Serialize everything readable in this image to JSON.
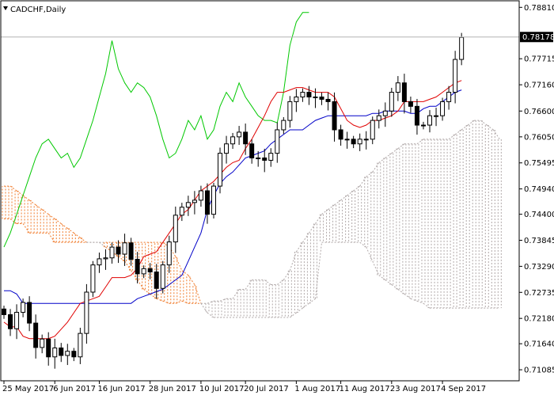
{
  "header": {
    "symbol_timeframe": "CADCHF,Daily",
    "menu_icon": "triangle-down-icon"
  },
  "price_marker": {
    "label": "0.78178",
    "value": 0.78178,
    "bg_color": "#000000",
    "text_color": "#ffffff"
  },
  "colors": {
    "background": "#ffffff",
    "axis": "#000000",
    "bull_candle": "#ffffff",
    "bear_candle": "#000000",
    "tenkan": "#e00000",
    "kijun": "#0000c8",
    "chikou": "#00c800",
    "kumo_bull": "#b0a8a8",
    "kumo_bear": "#f07a2a",
    "current_price_line": "#b4b4b4"
  },
  "chart_data": {
    "type": "candlestick",
    "title": "CADCHF,Daily",
    "indicators": [
      "Ichimoku Kinko Hyo"
    ],
    "ylim": [
      0.7085,
      0.7895
    ],
    "y_ticks": [
      "0.78810",
      "0.77715",
      "0.77160",
      "0.76600",
      "0.76050",
      "0.75495",
      "0.74940",
      "0.74400",
      "0.73845",
      "0.73290",
      "0.72735",
      "0.72180",
      "0.71640",
      "0.71085"
    ],
    "y_tick_values": [
      0.7881,
      0.77715,
      0.7716,
      0.766,
      0.7605,
      0.75495,
      0.7494,
      0.744,
      0.73845,
      0.7329,
      0.72735,
      0.7218,
      0.7164,
      0.71085
    ],
    "x_ticks": [
      "25 May 2017",
      "6 Jun 2017",
      "16 Jun 2017",
      "28 Jun 2017",
      "10 Jul 2017",
      "20 Jul 2017",
      "1 Aug 2017",
      "11 Aug 2017",
      "23 Aug 2017",
      "4 Sep 2017"
    ],
    "x_tick_bars": [
      0,
      8,
      15,
      23,
      31,
      38,
      46,
      53,
      61,
      69
    ],
    "bars_visible": 73,
    "bars_total": 99,
    "current_price": 0.78178,
    "close": [
      0.7226,
      0.7196,
      0.7231,
      0.7252,
      0.7208,
      0.7156,
      0.7174,
      0.7136,
      0.7155,
      0.7139,
      0.7148,
      0.7136,
      0.7186,
      0.7274,
      0.7332,
      0.7345,
      0.7347,
      0.737,
      0.7355,
      0.7379,
      0.7344,
      0.7313,
      0.7324,
      0.7317,
      0.7282,
      0.7332,
      0.7381,
      0.7438,
      0.7455,
      0.7465,
      0.747,
      0.749,
      0.744,
      0.75,
      0.757,
      0.759,
      0.7605,
      0.7615,
      0.759,
      0.756,
      0.756,
      0.7555,
      0.757,
      0.762,
      0.764,
      0.768,
      0.769,
      0.77,
      0.769,
      0.769,
      0.7685,
      0.768,
      0.762,
      0.76,
      0.76,
      0.759,
      0.76,
      0.76,
      0.764,
      0.765,
      0.766,
      0.77,
      0.772,
      0.768,
      0.767,
      0.763,
      0.763,
      0.765,
      0.765,
      0.768,
      0.77,
      0.777,
      0.7817
    ],
    "ohlc_note": "bars 0-72 plotted as open/high/low/close candles",
    "tenkan": [
      0.721,
      0.72,
      0.72,
      0.718,
      0.7175,
      0.7175,
      0.7175,
      0.7175,
      0.718,
      0.7195,
      0.721,
      0.723,
      0.725,
      0.7255,
      0.726,
      0.7265,
      0.7285,
      0.7305,
      0.7305,
      0.7305,
      0.731,
      0.7325,
      0.735,
      0.7355,
      0.736,
      0.738,
      0.74,
      0.742,
      0.744,
      0.745,
      0.747,
      0.749,
      0.75,
      0.751,
      0.7525,
      0.754,
      0.755,
      0.7555,
      0.758,
      0.76,
      0.7625,
      0.765,
      0.768,
      0.77,
      0.77,
      0.7705,
      0.771,
      0.771,
      0.7705,
      0.77,
      0.77,
      0.77,
      0.769,
      0.7665,
      0.764,
      0.763,
      0.7625,
      0.763,
      0.764,
      0.764,
      0.7645,
      0.765,
      0.766,
      0.768,
      0.768,
      0.768,
      0.768,
      0.7685,
      0.769,
      0.77,
      0.771,
      0.772,
      0.7725
    ],
    "kijun": [
      0.7277,
      0.7277,
      0.727,
      0.725,
      0.725,
      0.725,
      0.725,
      0.725,
      0.725,
      0.725,
      0.725,
      0.725,
      0.725,
      0.725,
      0.725,
      0.725,
      0.725,
      0.725,
      0.725,
      0.725,
      0.725,
      0.726,
      0.7265,
      0.727,
      0.7275,
      0.728,
      0.729,
      0.73,
      0.731,
      0.734,
      0.737,
      0.74,
      0.745,
      0.748,
      0.7505,
      0.752,
      0.753,
      0.7545,
      0.756,
      0.7565,
      0.757,
      0.7575,
      0.759,
      0.76,
      0.761,
      0.762,
      0.762,
      0.762,
      0.763,
      0.764,
      0.7645,
      0.765,
      0.765,
      0.765,
      0.765,
      0.765,
      0.765,
      0.765,
      0.7655,
      0.7655,
      0.766,
      0.766,
      0.766,
      0.766,
      0.7655,
      0.7655,
      0.7665,
      0.767,
      0.767,
      0.768,
      0.769,
      0.77,
      0.7705
    ],
    "chikou": [
      0.737,
      0.74,
      0.744,
      0.748,
      0.752,
      0.756,
      0.759,
      0.76,
      0.758,
      0.756,
      0.757,
      0.754,
      0.756,
      0.76,
      0.764,
      0.769,
      0.774,
      0.781,
      0.775,
      0.772,
      0.77,
      0.772,
      0.771,
      0.769,
      0.765,
      0.76,
      0.756,
      0.757,
      0.76,
      0.764,
      0.762,
      0.765,
      0.76,
      0.762,
      0.767,
      0.77,
      0.768,
      0.772,
      0.769,
      0.767,
      0.765,
      0.764,
      0.764,
      0.7635,
      0.77,
      0.78,
      0.785,
      0.787,
      0.787
    ],
    "senkou_a": [
      0.743,
      0.743,
      0.742,
      0.742,
      0.74,
      0.74,
      0.74,
      0.74,
      0.738,
      0.738,
      0.738,
      0.738,
      0.738,
      0.738,
      0.738,
      0.738,
      0.737,
      0.736,
      0.735,
      0.734,
      0.732,
      0.73,
      0.728,
      0.727,
      0.726,
      0.7255,
      0.725,
      0.725,
      0.7255,
      0.725,
      0.725,
      0.725,
      0.725,
      0.7255,
      0.7255,
      0.726,
      0.726,
      0.728,
      0.728,
      0.73,
      0.73,
      0.73,
      0.729,
      0.729,
      0.73,
      0.732,
      0.736,
      0.738,
      0.74,
      0.742,
      0.744,
      0.745,
      0.746,
      0.747,
      0.748,
      0.749,
      0.75,
      0.752,
      0.753,
      0.755,
      0.756,
      0.757,
      0.758,
      0.759,
      0.759,
      0.759,
      0.76,
      0.76,
      0.76,
      0.76,
      0.76,
      0.761,
      0.762,
      0.763,
      0.764,
      0.764,
      0.763,
      0.762,
      0.76
    ],
    "senkou_b": [
      0.75,
      0.75,
      0.749,
      0.748,
      0.747,
      0.746,
      0.745,
      0.744,
      0.743,
      0.742,
      0.741,
      0.74,
      0.739,
      0.738,
      0.738,
      0.738,
      0.738,
      0.738,
      0.738,
      0.738,
      0.738,
      0.738,
      0.738,
      0.738,
      0.738,
      0.738,
      0.737,
      0.735,
      0.732,
      0.731,
      0.729,
      0.725,
      0.723,
      0.722,
      0.722,
      0.722,
      0.722,
      0.722,
      0.722,
      0.722,
      0.722,
      0.722,
      0.722,
      0.722,
      0.722,
      0.722,
      0.723,
      0.724,
      0.725,
      0.726,
      0.738,
      0.738,
      0.738,
      0.738,
      0.738,
      0.738,
      0.738,
      0.737,
      0.734,
      0.731,
      0.73,
      0.729,
      0.728,
      0.727,
      0.726,
      0.7255,
      0.725,
      0.724,
      0.724,
      0.724,
      0.724,
      0.724,
      0.724,
      0.724,
      0.724,
      0.724,
      0.724,
      0.724,
      0.724
    ],
    "grid": false,
    "legend": "none"
  }
}
